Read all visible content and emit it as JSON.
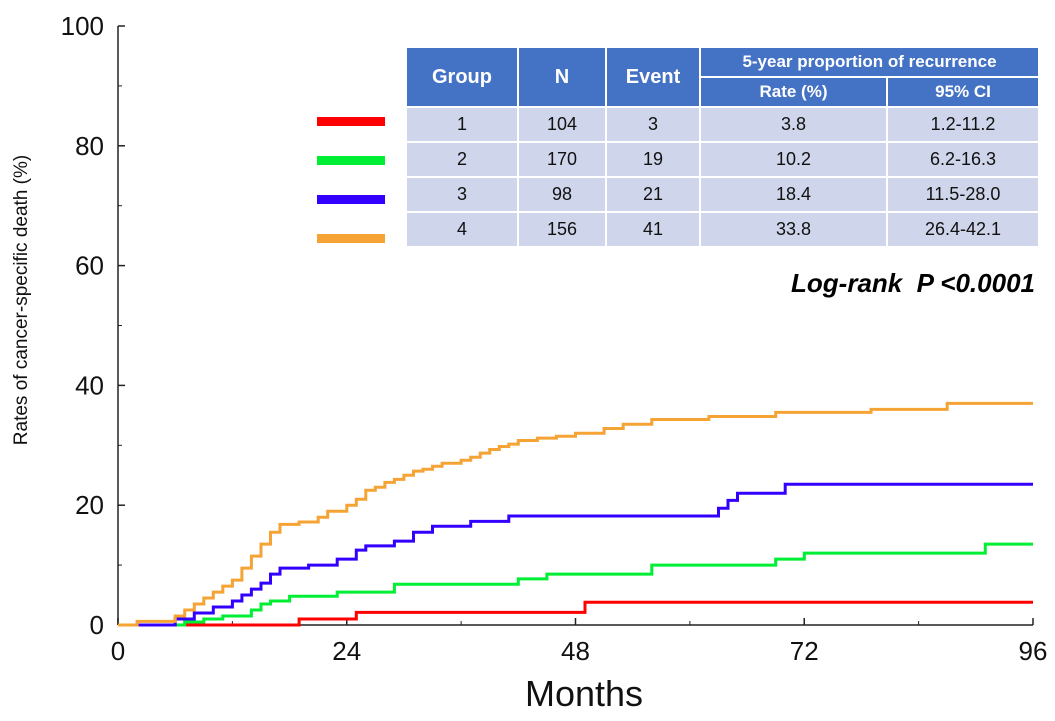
{
  "chart_data": {
    "type": "line",
    "step": true,
    "xlabel": "Months",
    "ylabel": "Rates of cancer-specific death (%)",
    "xlim": [
      0,
      96
    ],
    "ylim": [
      0,
      100
    ],
    "xticks": [
      "0",
      "24",
      "48",
      "72",
      "96"
    ],
    "yticks": [
      "0",
      "20",
      "40",
      "60",
      "80",
      "100"
    ],
    "grid": false,
    "annotation": "Log-rank  P <0.0001",
    "series": [
      {
        "name": "1",
        "color": "#ff0000",
        "x": [
          0,
          19,
          25,
          49,
          96
        ],
        "y": [
          0,
          1.0,
          2.1,
          3.8,
          3.8
        ]
      },
      {
        "name": "2",
        "color": "#00ee33",
        "x": [
          0,
          7,
          9,
          11,
          14,
          15,
          16,
          18,
          23,
          29,
          42,
          45,
          56,
          69,
          72,
          91,
          96
        ],
        "y": [
          0,
          0.5,
          1.0,
          1.5,
          2.5,
          3.5,
          4.0,
          4.8,
          5.5,
          6.8,
          7.7,
          8.5,
          10.0,
          11.0,
          12.0,
          13.5,
          13.5
        ]
      },
      {
        "name": "3",
        "color": "#3300ff",
        "x": [
          0,
          6,
          8,
          10,
          12,
          13,
          14,
          15,
          16,
          17,
          20,
          23,
          25,
          26,
          29,
          31,
          33,
          37,
          41,
          63,
          64,
          65,
          70,
          96
        ],
        "y": [
          0,
          1.0,
          2.0,
          3.0,
          4.0,
          5.0,
          6.0,
          7.0,
          8.5,
          9.5,
          10.0,
          11.0,
          12.5,
          13.2,
          14.0,
          15.5,
          16.5,
          17.3,
          18.2,
          19.5,
          20.8,
          22.0,
          23.5,
          23.5
        ]
      },
      {
        "name": "4",
        "color": "#f5a335",
        "x": [
          0,
          2,
          6,
          7,
          8,
          9,
          10,
          11,
          12,
          13,
          14,
          15,
          16,
          17,
          19,
          21,
          22,
          24,
          25,
          26,
          27,
          28,
          29,
          30,
          31,
          32,
          33,
          34,
          36,
          37,
          38,
          39,
          40,
          41,
          42,
          44,
          46,
          48,
          51,
          53,
          56,
          62,
          69,
          79,
          87,
          96
        ],
        "y": [
          0,
          0.6,
          1.5,
          2.5,
          3.5,
          4.5,
          5.5,
          6.5,
          7.5,
          9.5,
          11.5,
          13.5,
          15.5,
          16.8,
          17.2,
          18.0,
          19.0,
          20.0,
          21.0,
          22.5,
          23.0,
          23.8,
          24.3,
          25.0,
          25.7,
          26.0,
          26.5,
          27.0,
          27.5,
          28.0,
          28.7,
          29.3,
          29.8,
          30.2,
          30.8,
          31.2,
          31.5,
          32.0,
          32.8,
          33.5,
          34.3,
          34.8,
          35.5,
          36.0,
          37.0,
          37.0
        ]
      }
    ]
  },
  "table": {
    "headers": {
      "group": "Group",
      "n": "N",
      "event": "Event",
      "span": "5-year proportion of recurrence",
      "rate": "Rate (%)",
      "ci": "95% CI"
    },
    "rows": [
      {
        "group": "1",
        "n": "104",
        "event": "3",
        "rate": "3.8",
        "ci": "1.2-11.2",
        "color": "#ff0000"
      },
      {
        "group": "2",
        "n": "170",
        "event": "19",
        "rate": "10.2",
        "ci": "6.2-16.3",
        "color": "#00ee33"
      },
      {
        "group": "3",
        "n": "98",
        "event": "21",
        "rate": "18.4",
        "ci": "11.5-28.0",
        "color": "#3300ff"
      },
      {
        "group": "4",
        "n": "156",
        "event": "41",
        "rate": "33.8",
        "ci": "26.4-42.1",
        "color": "#f5a335"
      }
    ]
  }
}
